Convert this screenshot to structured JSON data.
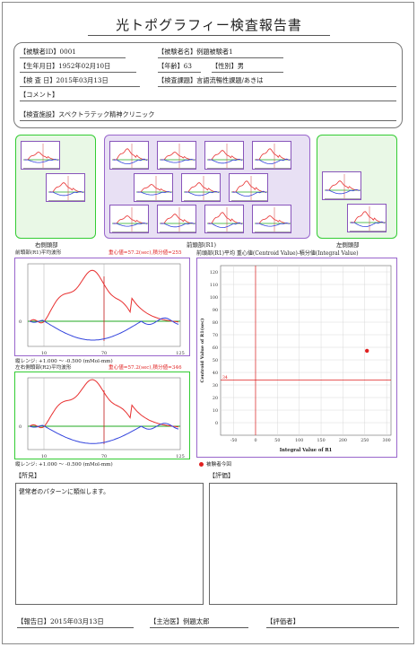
{
  "report": {
    "title": "光トポグラフィー検査報告書"
  },
  "info": {
    "subject_id_label": "【被験者ID】",
    "subject_id": "0001",
    "subject_name_label": "【被験者名】",
    "subject_name": "例題被験者1",
    "dob_label": "【生年月日】",
    "dob": "1952年02月10日",
    "age_label": "【年齢】",
    "age": "63",
    "sex_label": "【性別】",
    "sex": "男",
    "exam_date_label": "【検 査 日】",
    "exam_date": "2015年03月13日",
    "task_label": "【検査課題】",
    "task": "言語流暢性課題/あきは",
    "comment_label": "【コメント】",
    "comment": "",
    "facility_label": "【検査施設】",
    "facility": "スペクトラテック精神クリニック"
  },
  "topography": {
    "right_label": "右側頭部",
    "front_label": "前頭部(R1)",
    "left_label": "左側頭部",
    "front_channels": 13,
    "right_channels": 2,
    "left_channels": 2
  },
  "waveform1": {
    "title": "前頭部(R1)平均波形",
    "stats": "重心値=57.2(sec),積分値=255",
    "range": "縦レンジ: +1.000 ～ -0.500 (mMol-mm)",
    "x_ticks": [
      "10",
      "70",
      "125"
    ],
    "y_zero": "0"
  },
  "waveform2": {
    "title": "左右側頭部(R2)平均波形",
    "stats": "重心値=57.2(sec),積分値=346",
    "range": "縦レンジ: +1.000 ～ -0.500 (mMol-mm)",
    "x_ticks": [
      "10",
      "70",
      "125"
    ],
    "y_zero": "0"
  },
  "chart_data": {
    "type": "scatter",
    "title": "前頭部(R1)平均 重心値(Centroid Value)-積分値(Integral Value)",
    "xlabel": "Integral Value of R1",
    "ylabel": "Centroid Value of R1(sec)",
    "xlim": [
      -80,
      310
    ],
    "ylim": [
      -10,
      125
    ],
    "x_ticks": [
      -50,
      0,
      50,
      100,
      150,
      200,
      250,
      300
    ],
    "y_ticks": [
      0,
      10,
      20,
      30,
      40,
      50,
      60,
      70,
      80,
      90,
      100,
      110,
      120
    ],
    "ref_x": 0,
    "ref_y": 34,
    "ref_y_label": "34",
    "points": [
      {
        "x": 255,
        "y": 57.2
      }
    ],
    "legend": "被験者今回",
    "grid": true
  },
  "findings": {
    "label": "【所見】",
    "text": "健常者のパターンに類似します。"
  },
  "evaluation": {
    "label": "【評価】",
    "text": ""
  },
  "footer": {
    "report_date_label": "【報告日】",
    "report_date": "2015年03月13日",
    "doctor_label": "【主治医】",
    "doctor": "例題太郎",
    "evaluator_label": "【評価者】",
    "evaluator": ""
  },
  "colors": {
    "oxy": "#e83030",
    "deoxy": "#3344dd",
    "total": "#22aa22",
    "green_frame": "#33cc33",
    "purple_frame": "#9966cc"
  }
}
